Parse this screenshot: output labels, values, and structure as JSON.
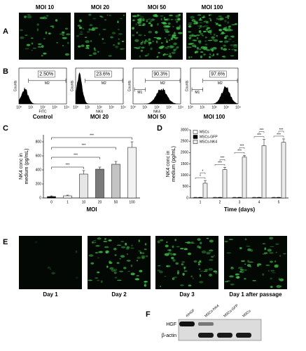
{
  "panel_a": {
    "label": "A",
    "images": [
      "MOI 10",
      "MOI 20",
      "MOI 50",
      "MOI 100"
    ]
  },
  "panel_b": {
    "label": "B",
    "y_label": "Counts",
    "ticks": [
      "10⁰",
      "10¹",
      "10²",
      "10³",
      "10⁴"
    ],
    "plots": [
      {
        "percent": "2.50%",
        "gates": [
          "M2"
        ],
        "x_label": "FITC",
        "caption": "Control"
      },
      {
        "percent": "23.6%",
        "gates": [
          "M2"
        ],
        "x_label": "NK4",
        "caption": "MOI 20"
      },
      {
        "percent": "90.3%",
        "gates": [
          "M1",
          "M2"
        ],
        "x_label": "NK4",
        "caption": "MOI 50"
      },
      {
        "percent": "97.6%",
        "gates": [
          "M1",
          "M2"
        ],
        "caption": "MOI 100"
      }
    ]
  },
  "chart_data": [
    {
      "type": "bar",
      "label": "C",
      "x_label": "MOI",
      "y_label": [
        "NK4 conc in",
        "medium (pg/mL)"
      ],
      "categories": [
        "0",
        "1",
        "10",
        "20",
        "50",
        "100"
      ],
      "values": [
        20,
        30,
        340,
        410,
        480,
        720
      ],
      "errors": [
        10,
        10,
        50,
        30,
        40,
        80
      ],
      "colors": [
        "#000000",
        "#ffffff",
        "#e6e6e6",
        "#7a7a7a",
        "#c4c4c4",
        "#f2f2f2"
      ],
      "ylim": [
        0,
        900
      ],
      "yticks": [
        0,
        200,
        400,
        600,
        800
      ],
      "annotations": [
        "***",
        "***",
        "***",
        "***"
      ]
    },
    {
      "type": "bar",
      "label": "D",
      "x_label": "Time (days)",
      "y_label": [
        "NK4 conc in",
        "medium (pg/mL)"
      ],
      "categories": [
        "1",
        "2",
        "3",
        "4",
        "5"
      ],
      "series": [
        {
          "name": "MSCs",
          "color": "#ffffff",
          "values": [
            20,
            20,
            20,
            20,
            20
          ],
          "errors": [
            10,
            10,
            10,
            10,
            10
          ]
        },
        {
          "name": "MSCs-GFP",
          "color": "#000000",
          "values": [
            20,
            20,
            20,
            20,
            20
          ],
          "errors": [
            10,
            10,
            10,
            10,
            10
          ]
        },
        {
          "name": "MSCs-NK4",
          "color": "#ececec",
          "values": [
            650,
            1250,
            1800,
            2300,
            2450
          ],
          "errors": [
            120,
            100,
            80,
            280,
            150
          ]
        }
      ],
      "ylim": [
        0,
        3000
      ],
      "yticks": [
        0,
        500,
        1000,
        1500,
        2000,
        2500,
        3000
      ],
      "annotations": [
        [
          "*",
          "*"
        ],
        [
          "***",
          "***"
        ],
        [
          "***",
          "***"
        ],
        [
          "***",
          "***"
        ],
        [
          "***",
          "***"
        ]
      ]
    }
  ],
  "panel_e": {
    "label": "E",
    "images": [
      "Day 1",
      "Day 2",
      "Day 3",
      "Day 1 after passage"
    ]
  },
  "panel_f": {
    "label": "F",
    "lanes": [
      "rhHGF",
      "MSCs-NK4",
      "MSCs-GFP",
      "MSCs"
    ],
    "rows": [
      "HGF",
      "β-actin"
    ]
  }
}
